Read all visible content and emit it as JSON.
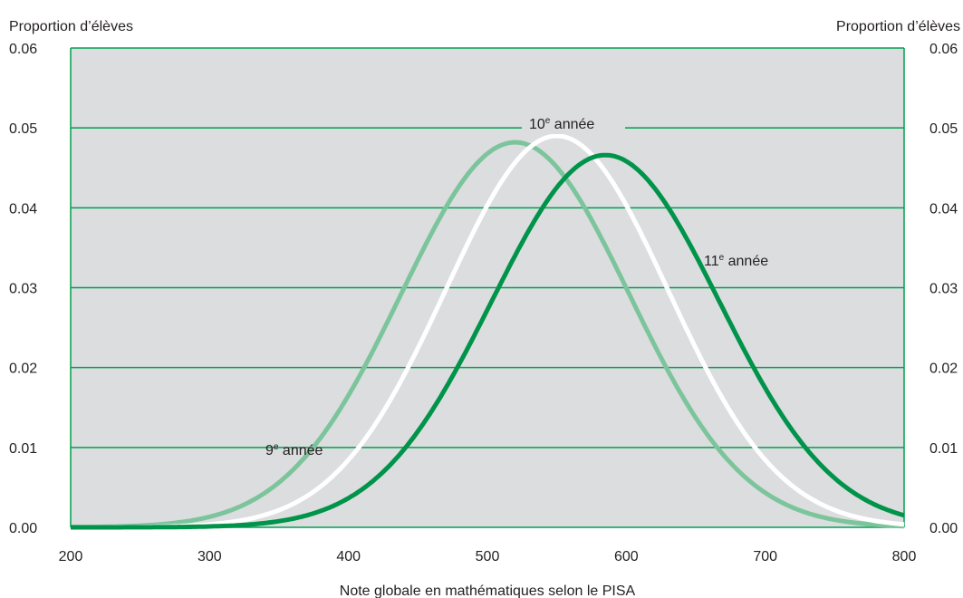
{
  "chart_data": {
    "type": "line",
    "ylabel_left": "Proportion d’élèves",
    "ylabel_right": "Proportion d’élèves",
    "xlabel": "Note globale en mathématiques selon le PISA",
    "xlim": [
      200,
      800
    ],
    "ylim": [
      0,
      0.06
    ],
    "x_ticks": [
      "200",
      "300",
      "400",
      "500",
      "600",
      "700",
      "800"
    ],
    "y_ticks": [
      "0.00",
      "0.01",
      "0.02",
      "0.03",
      "0.04",
      "0.05",
      "0.06"
    ],
    "grid": true,
    "plot_background": "#dcdddf",
    "grid_color": "#00a050",
    "series": [
      {
        "name": "9e année",
        "label_main": "9",
        "label_sup": "e",
        "label_rest": " année",
        "color": "#7cc59c",
        "distribution": {
          "mean": 520,
          "sd": 82,
          "peak": 0.0482
        }
      },
      {
        "name": "10e année",
        "label_main": "10",
        "label_sup": "e",
        "label_rest": " année",
        "color": "#ffffff",
        "distribution": {
          "mean": 550,
          "sd": 80,
          "peak": 0.049
        }
      },
      {
        "name": "11e année",
        "label_main": "11",
        "label_sup": "e",
        "label_rest": " année",
        "color": "#00934a",
        "distribution": {
          "mean": 585,
          "sd": 82,
          "peak": 0.0466
        }
      }
    ]
  }
}
